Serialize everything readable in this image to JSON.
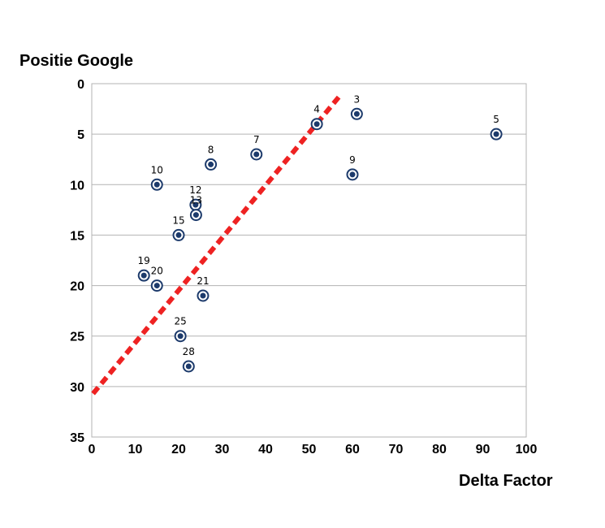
{
  "chart_data": {
    "type": "scatter",
    "title": "",
    "xlabel": "Delta Factor",
    "ylabel": "Positie Google",
    "xlim": [
      0,
      100
    ],
    "ylim": [
      0,
      35
    ],
    "y_reversed": true,
    "x_ticks": [
      "0",
      "10",
      "20",
      "30",
      "40",
      "50",
      "60",
      "70",
      "80",
      "90",
      "100"
    ],
    "y_ticks": [
      "0",
      "5",
      "10",
      "15",
      "20",
      "25",
      "30",
      "35"
    ],
    "grid": "horizontal",
    "legend": "none",
    "points": [
      {
        "label": "3",
        "x": 61,
        "y": 3
      },
      {
        "label": "4",
        "x": 51.8,
        "y": 4
      },
      {
        "label": "5",
        "x": 93.1,
        "y": 5
      },
      {
        "label": "7",
        "x": 37.9,
        "y": 7
      },
      {
        "label": "8",
        "x": 27.4,
        "y": 8
      },
      {
        "label": "9",
        "x": 60,
        "y": 9
      },
      {
        "label": "10",
        "x": 15,
        "y": 10
      },
      {
        "label": "12",
        "x": 23.9,
        "y": 12
      },
      {
        "label": "13",
        "x": 24,
        "y": 13
      },
      {
        "label": "15",
        "x": 20,
        "y": 15
      },
      {
        "label": "19",
        "x": 12,
        "y": 19
      },
      {
        "label": "20",
        "x": 15,
        "y": 20
      },
      {
        "label": "21",
        "x": 25.6,
        "y": 21
      },
      {
        "label": "25",
        "x": 20.4,
        "y": 25
      },
      {
        "label": "28",
        "x": 22.3,
        "y": 28
      }
    ],
    "trendline": {
      "x": [
        0.3,
        57.1
      ],
      "y": [
        30.7,
        1.2
      ],
      "color": "#ee2222",
      "style": "dashed"
    },
    "marker_color": "#1c3a6b"
  }
}
